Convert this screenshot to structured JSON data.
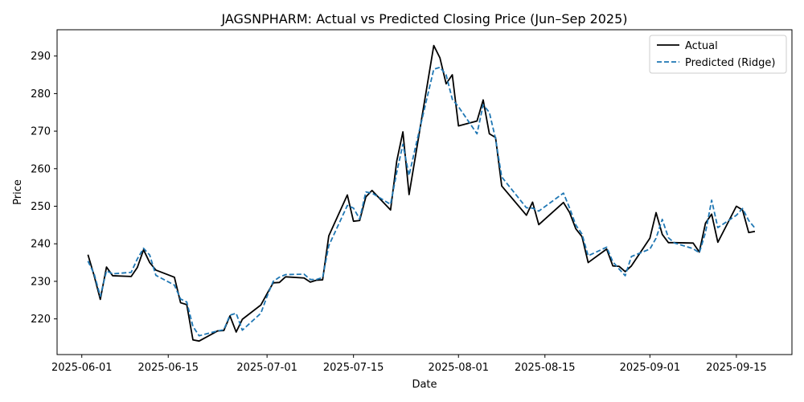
{
  "chart_data": {
    "type": "line",
    "title": "JAGSNPHARM: Actual vs Predicted Closing Price (Jun–Sep 2025)",
    "xlabel": "Date",
    "ylabel": "Price",
    "xlim": [
      "2025-05-28",
      "2025-09-24"
    ],
    "ylim": [
      210.5,
      297
    ],
    "x_ticks": [
      "2025-06-01",
      "2025-06-15",
      "2025-07-01",
      "2025-07-15",
      "2025-08-01",
      "2025-08-15",
      "2025-09-01",
      "2025-09-15"
    ],
    "y_ticks": [
      220,
      230,
      240,
      250,
      260,
      270,
      280,
      290
    ],
    "grid": false,
    "legend_position": "upper right",
    "series": [
      {
        "name": "Actual",
        "color": "#000000",
        "style": "solid",
        "points": [
          [
            "2025-06-02",
            237.1
          ],
          [
            "2025-06-03",
            231.5
          ],
          [
            "2025-06-04",
            225.2
          ],
          [
            "2025-06-05",
            233.8
          ],
          [
            "2025-06-06",
            231.5
          ],
          [
            "2025-06-09",
            231.3
          ],
          [
            "2025-06-10",
            233.7
          ],
          [
            "2025-06-11",
            238.4
          ],
          [
            "2025-06-12",
            235.0
          ],
          [
            "2025-06-13",
            233.0
          ],
          [
            "2025-06-16",
            231.1
          ],
          [
            "2025-06-17",
            224.3
          ],
          [
            "2025-06-18",
            223.8
          ],
          [
            "2025-06-19",
            214.4
          ],
          [
            "2025-06-20",
            214.1
          ],
          [
            "2025-06-23",
            216.8
          ],
          [
            "2025-06-24",
            216.9
          ],
          [
            "2025-06-25",
            220.8
          ],
          [
            "2025-06-26",
            216.5
          ],
          [
            "2025-06-27",
            219.9
          ],
          [
            "2025-06-30",
            223.7
          ],
          [
            "2025-07-01",
            226.7
          ],
          [
            "2025-07-02",
            229.6
          ],
          [
            "2025-07-03",
            229.7
          ],
          [
            "2025-07-04",
            231.2
          ],
          [
            "2025-07-07",
            230.9
          ],
          [
            "2025-07-08",
            229.8
          ],
          [
            "2025-07-09",
            230.3
          ],
          [
            "2025-07-10",
            230.4
          ],
          [
            "2025-07-11",
            242.1
          ],
          [
            "2025-07-14",
            253.0
          ],
          [
            "2025-07-15",
            246.0
          ],
          [
            "2025-07-16",
            246.2
          ],
          [
            "2025-07-17",
            252.5
          ],
          [
            "2025-07-18",
            254.2
          ],
          [
            "2025-07-21",
            249.0
          ],
          [
            "2025-07-22",
            262.0
          ],
          [
            "2025-07-23",
            269.8
          ],
          [
            "2025-07-24",
            253.1
          ],
          [
            "2025-07-25",
            263.0
          ],
          [
            "2025-07-28",
            292.8
          ],
          [
            "2025-07-29",
            289.5
          ],
          [
            "2025-07-30",
            282.6
          ],
          [
            "2025-07-31",
            285.0
          ],
          [
            "2025-08-01",
            271.4
          ],
          [
            "2025-08-04",
            272.7
          ],
          [
            "2025-08-05",
            278.3
          ],
          [
            "2025-08-06",
            269.3
          ],
          [
            "2025-08-07",
            268.3
          ],
          [
            "2025-08-08",
            255.4
          ],
          [
            "2025-08-12",
            247.6
          ],
          [
            "2025-08-13",
            251.1
          ],
          [
            "2025-08-14",
            245.1
          ],
          [
            "2025-08-18",
            251.0
          ],
          [
            "2025-08-19",
            248.3
          ],
          [
            "2025-08-20",
            244.0
          ],
          [
            "2025-08-21",
            241.9
          ],
          [
            "2025-08-22",
            235.0
          ],
          [
            "2025-08-25",
            238.6
          ],
          [
            "2025-08-26",
            234.1
          ],
          [
            "2025-08-27",
            234.0
          ],
          [
            "2025-08-28",
            232.6
          ],
          [
            "2025-08-29",
            234.1
          ],
          [
            "2025-09-01",
            241.5
          ],
          [
            "2025-09-02",
            248.3
          ],
          [
            "2025-09-03",
            242.5
          ],
          [
            "2025-09-04",
            240.3
          ],
          [
            "2025-09-05",
            240.3
          ],
          [
            "2025-09-08",
            240.2
          ],
          [
            "2025-09-09",
            237.8
          ],
          [
            "2025-09-10",
            245.5
          ],
          [
            "2025-09-11",
            247.9
          ],
          [
            "2025-09-12",
            240.4
          ],
          [
            "2025-09-15",
            250.0
          ],
          [
            "2025-09-16",
            249.0
          ],
          [
            "2025-09-17",
            243.0
          ],
          [
            "2025-09-18",
            243.3
          ]
        ]
      },
      {
        "name": "Predicted (Ridge)",
        "color": "#1f77b4",
        "style": "dashed",
        "points": [
          [
            "2025-06-02",
            235.4
          ],
          [
            "2025-06-03",
            232.0
          ],
          [
            "2025-06-04",
            226.0
          ],
          [
            "2025-06-05",
            232.8
          ],
          [
            "2025-06-06",
            232.0
          ],
          [
            "2025-06-09",
            232.4
          ],
          [
            "2025-06-10",
            236.0
          ],
          [
            "2025-06-11",
            238.8
          ],
          [
            "2025-06-12",
            237.0
          ],
          [
            "2025-06-13",
            231.6
          ],
          [
            "2025-06-16",
            229.0
          ],
          [
            "2025-06-17",
            225.3
          ],
          [
            "2025-06-18",
            224.5
          ],
          [
            "2025-06-19",
            218.0
          ],
          [
            "2025-06-20",
            215.5
          ],
          [
            "2025-06-23",
            216.8
          ],
          [
            "2025-06-24",
            217.1
          ],
          [
            "2025-06-25",
            221.0
          ],
          [
            "2025-06-26",
            221.5
          ],
          [
            "2025-06-27",
            217.0
          ],
          [
            "2025-06-30",
            221.5
          ],
          [
            "2025-07-01",
            226.0
          ],
          [
            "2025-07-02",
            230.0
          ],
          [
            "2025-07-03",
            231.1
          ],
          [
            "2025-07-04",
            231.8
          ],
          [
            "2025-07-07",
            231.9
          ],
          [
            "2025-07-08",
            230.5
          ],
          [
            "2025-07-09",
            230.5
          ],
          [
            "2025-07-10",
            231.0
          ],
          [
            "2025-07-11",
            239.5
          ],
          [
            "2025-07-14",
            250.2
          ],
          [
            "2025-07-15",
            249.5
          ],
          [
            "2025-07-16",
            246.6
          ],
          [
            "2025-07-17",
            253.8
          ],
          [
            "2025-07-18",
            253.5
          ],
          [
            "2025-07-21",
            250.5
          ],
          [
            "2025-07-22",
            259.0
          ],
          [
            "2025-07-23",
            266.5
          ],
          [
            "2025-07-24",
            258.2
          ],
          [
            "2025-07-25",
            265.5
          ],
          [
            "2025-07-28",
            286.5
          ],
          [
            "2025-07-29",
            287.0
          ],
          [
            "2025-07-30",
            285.0
          ],
          [
            "2025-07-31",
            278.5
          ],
          [
            "2025-08-01",
            276.5
          ],
          [
            "2025-08-04",
            269.3
          ],
          [
            "2025-08-05",
            277.0
          ],
          [
            "2025-08-06",
            275.0
          ],
          [
            "2025-08-07",
            268.0
          ],
          [
            "2025-08-08",
            257.8
          ],
          [
            "2025-08-12",
            249.6
          ],
          [
            "2025-08-13",
            249.5
          ],
          [
            "2025-08-14",
            248.7
          ],
          [
            "2025-08-18",
            253.5
          ],
          [
            "2025-08-19",
            249.5
          ],
          [
            "2025-08-20",
            245.0
          ],
          [
            "2025-08-21",
            242.6
          ],
          [
            "2025-08-22",
            236.8
          ],
          [
            "2025-08-25",
            239.1
          ],
          [
            "2025-08-26",
            235.2
          ],
          [
            "2025-08-27",
            233.3
          ],
          [
            "2025-08-28",
            231.5
          ],
          [
            "2025-08-29",
            236.6
          ],
          [
            "2025-09-01",
            238.6
          ],
          [
            "2025-09-02",
            241.5
          ],
          [
            "2025-09-03",
            246.5
          ],
          [
            "2025-09-04",
            241.6
          ],
          [
            "2025-09-05",
            240.2
          ],
          [
            "2025-09-08",
            238.7
          ],
          [
            "2025-09-09",
            237.6
          ],
          [
            "2025-09-10",
            243.0
          ],
          [
            "2025-09-11",
            251.6
          ],
          [
            "2025-09-12",
            244.3
          ],
          [
            "2025-09-15",
            247.6
          ],
          [
            "2025-09-16",
            249.4
          ],
          [
            "2025-09-17",
            246.2
          ],
          [
            "2025-09-18",
            244.2
          ]
        ]
      }
    ]
  }
}
